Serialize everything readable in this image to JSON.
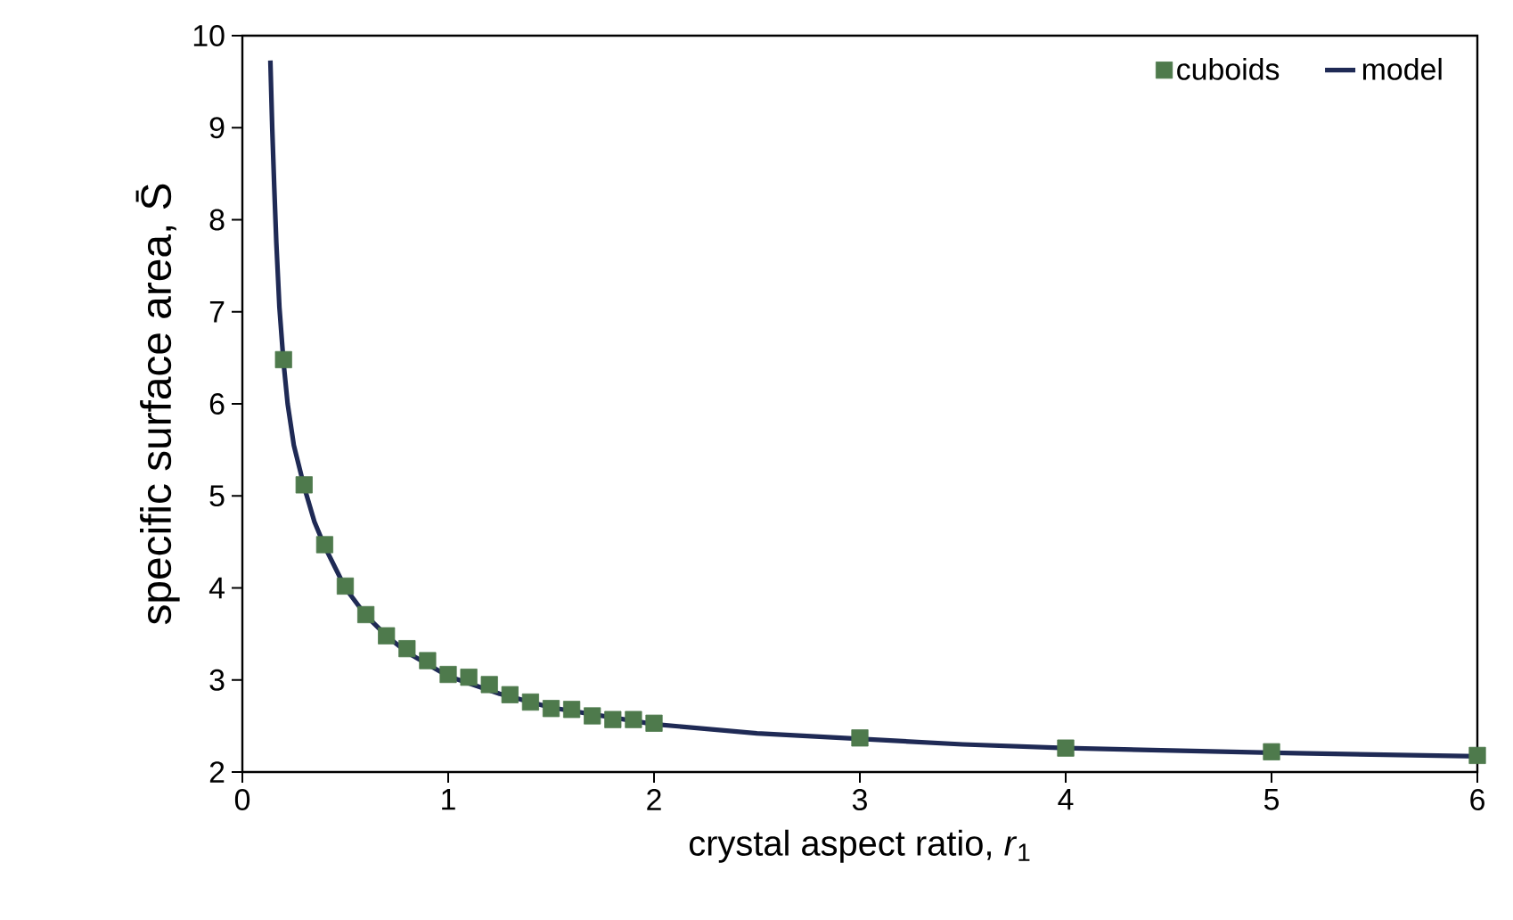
{
  "chart_data": {
    "type": "scatter",
    "xlabel": "crystal aspect ratio, *r*$_{1}$",
    "ylabel": "specific surface area, S̄",
    "xlim": [
      0,
      6
    ],
    "ylim": [
      2,
      10
    ],
    "xticks": [
      0,
      1,
      2,
      3,
      4,
      5,
      6
    ],
    "yticks": [
      2,
      3,
      4,
      5,
      6,
      7,
      8,
      9,
      10
    ],
    "grid": false,
    "legend": "top right",
    "series": [
      {
        "name": "cuboids",
        "marker": "square",
        "color": "#4e7a4c",
        "x": [
          0.2,
          0.3,
          0.4,
          0.5,
          0.6,
          0.7,
          0.8,
          0.9,
          1.0,
          1.1,
          1.2,
          1.3,
          1.4,
          1.5,
          1.6,
          1.7,
          1.8,
          1.9,
          2.0,
          3,
          4,
          5,
          6
        ],
        "values": [
          6.48,
          5.12,
          4.47,
          4.02,
          3.71,
          3.48,
          3.34,
          3.21,
          3.06,
          3.03,
          2.95,
          2.84,
          2.76,
          2.69,
          2.68,
          2.61,
          2.57,
          2.57,
          2.53,
          2.37,
          2.26,
          2.22,
          2.18
        ]
      },
      {
        "name": "model",
        "type": "line",
        "marker": "none",
        "line_style": "solid",
        "color": "#1f2a55",
        "x": [
          0.136,
          0.145,
          0.155,
          0.165,
          0.18,
          0.2,
          0.22,
          0.25,
          0.3,
          0.35,
          0.4,
          0.5,
          0.6,
          0.7,
          0.8,
          1.0,
          1.25,
          1.5,
          2,
          2.5,
          3,
          3.5,
          4,
          5,
          6
        ],
        "values": [
          9.73,
          9.0,
          8.35,
          7.75,
          7.05,
          6.45,
          6.0,
          5.55,
          5.1,
          4.72,
          4.45,
          4.0,
          3.7,
          3.48,
          3.3,
          3.04,
          2.85,
          2.7,
          2.52,
          2.42,
          2.36,
          2.3,
          2.26,
          2.21,
          2.17
        ]
      }
    ]
  }
}
